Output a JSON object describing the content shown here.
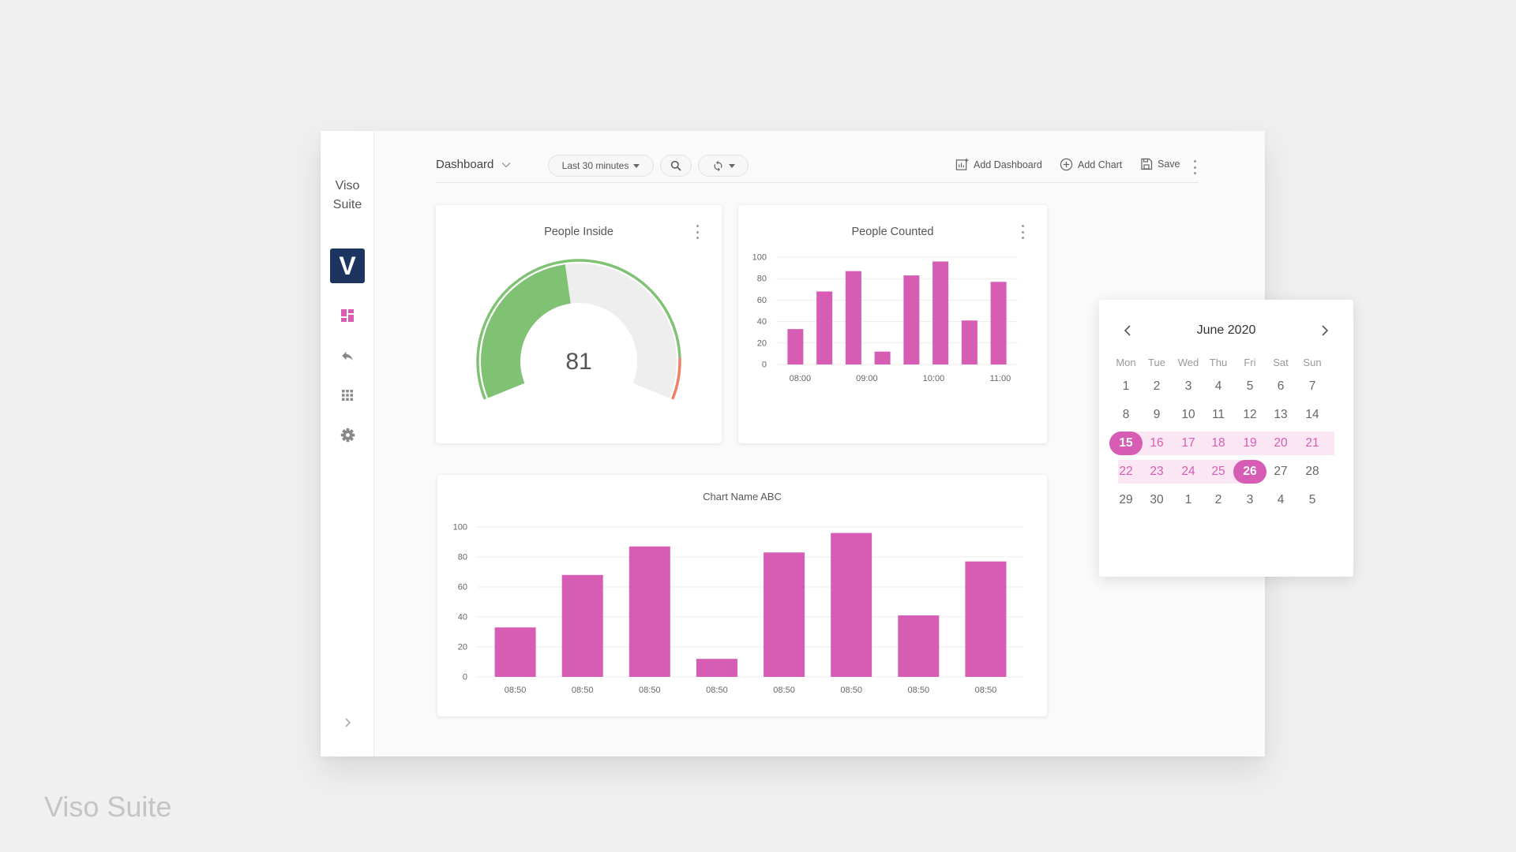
{
  "sidebar": {
    "brand_line1": "Viso",
    "brand_line2": "Suite",
    "logo_letter": "V",
    "items": [
      {
        "icon": "dashboard-icon"
      },
      {
        "icon": "reply-icon"
      },
      {
        "icon": "apps-grid-icon"
      },
      {
        "icon": "gear-icon"
      }
    ],
    "expand_icon": "chevron-right-icon"
  },
  "toolbar": {
    "dashboard_label": "Dashboard",
    "time_range": "Last 30 minutes",
    "add_dashboard": "Add Dashboard",
    "add_chart": "Add Chart",
    "save": "Save"
  },
  "colors": {
    "accent": "#d65cb4",
    "gauge_fill": "#7fc274",
    "gauge_track": "#eeeeee",
    "gauge_warn": "#f07f66",
    "logo_bg": "#1c3560"
  },
  "cards": {
    "people_inside": {
      "title": "People Inside",
      "value": "81",
      "percent": 81
    },
    "people_counted": {
      "title": "People Counted"
    },
    "chart_abc": {
      "title": "Chart Name ABC"
    }
  },
  "chart_data": [
    {
      "type": "gauge",
      "title": "People Inside",
      "value": 81,
      "range": [
        0,
        100
      ]
    },
    {
      "type": "bar",
      "title": "People Counted",
      "values": [
        33,
        68,
        87,
        12,
        83,
        96,
        41,
        77
      ],
      "x_ticks": [
        "08:00",
        "09:00",
        "10:00",
        "11:00"
      ],
      "y_ticks": [
        0,
        20,
        40,
        60,
        80,
        100
      ],
      "ylim": [
        0,
        100
      ],
      "grid": true,
      "color": "#d65cb4"
    },
    {
      "type": "bar",
      "title": "Chart Name ABC",
      "categories": [
        "08:50",
        "08:50",
        "08:50",
        "08:50",
        "08:50",
        "08:50",
        "08:50",
        "08:50"
      ],
      "values": [
        33,
        68,
        87,
        12,
        83,
        96,
        41,
        77
      ],
      "y_ticks": [
        0,
        20,
        40,
        60,
        80,
        100
      ],
      "ylim": [
        0,
        100
      ],
      "grid": true,
      "color": "#d65cb4"
    }
  ],
  "calendar": {
    "title": "June 2020",
    "weekdays": [
      "Mon",
      "Tue",
      "Wed",
      "Thu",
      "Fri",
      "Sat",
      "Sun"
    ],
    "weeks": [
      [
        "1",
        "2",
        "3",
        "4",
        "5",
        "6",
        "7"
      ],
      [
        "8",
        "9",
        "10",
        "11",
        "12",
        "13",
        "14"
      ],
      [
        "15",
        "16",
        "17",
        "18",
        "19",
        "20",
        "21"
      ],
      [
        "22",
        "23",
        "24",
        "25",
        "26",
        "27",
        "28"
      ],
      [
        "29",
        "30",
        "1",
        "2",
        "3",
        "4",
        "5"
      ]
    ],
    "range_start": "15",
    "range_end": "26"
  },
  "watermark": "Viso Suite"
}
